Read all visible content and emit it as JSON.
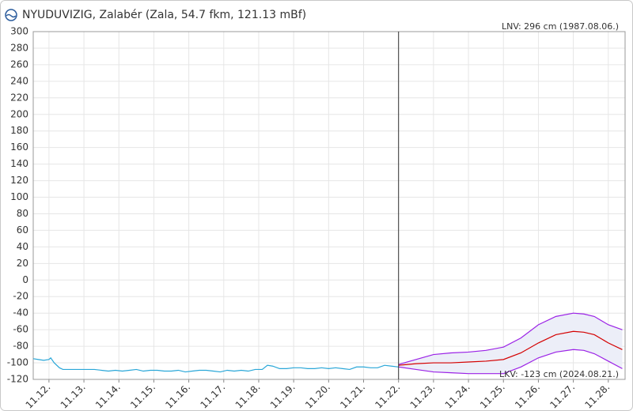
{
  "chart_data": {
    "type": "line",
    "title": "NYUDUVIZIG, Zalabér (Zala, 54.7 fkm, 121.13 mBf)",
    "annotations": [
      "LNV: 296 cm (1987.08.06.)",
      "LKV: -123 cm (2024.08.21.)"
    ],
    "xlim": [
      11.55,
      28.48
    ],
    "xticks": [
      {
        "value": 12,
        "label": "11.12."
      },
      {
        "value": 13,
        "label": "11.13."
      },
      {
        "value": 14,
        "label": "11.14."
      },
      {
        "value": 15,
        "label": "11.15."
      },
      {
        "value": 16,
        "label": "11.16."
      },
      {
        "value": 17,
        "label": "11.17."
      },
      {
        "value": 18,
        "label": "11.18."
      },
      {
        "value": 19,
        "label": "11.19."
      },
      {
        "value": 20,
        "label": "11.20."
      },
      {
        "value": 21,
        "label": "11.21."
      },
      {
        "value": 22,
        "label": "11.22."
      },
      {
        "value": 23,
        "label": "11.23."
      },
      {
        "value": 24,
        "label": "11.24."
      },
      {
        "value": 25,
        "label": "11.25."
      },
      {
        "value": 26,
        "label": "11.26."
      },
      {
        "value": 27,
        "label": "11.27."
      },
      {
        "value": 28,
        "label": "11.28."
      }
    ],
    "ylim": [
      -120,
      300
    ],
    "yticks": [
      -120,
      -100,
      -80,
      -60,
      -40,
      -20,
      0,
      20,
      40,
      60,
      80,
      100,
      120,
      140,
      160,
      180,
      200,
      220,
      240,
      260,
      280,
      300
    ],
    "grid": true,
    "vline": 22,
    "band_color": "#eceef8",
    "series": [
      {
        "color": "#2aa7d8",
        "x": [
          11.55,
          11.7,
          11.85,
          12.0,
          12.05,
          12.15,
          12.3,
          12.4,
          12.7,
          13.0,
          13.3,
          13.5,
          13.7,
          13.9,
          14.1,
          14.3,
          14.5,
          14.7,
          14.9,
          15.1,
          15.3,
          15.5,
          15.7,
          15.9,
          16.1,
          16.3,
          16.5,
          16.7,
          16.9,
          17.1,
          17.3,
          17.5,
          17.7,
          17.9,
          18.1,
          18.25,
          18.4,
          18.6,
          18.8,
          19.0,
          19.2,
          19.4,
          19.6,
          19.8,
          20.0,
          20.2,
          20.4,
          20.6,
          20.8,
          21.0,
          21.2,
          21.4,
          21.6,
          21.8,
          22.0
        ],
        "values": [
          -95,
          -96,
          -97,
          -96,
          -94,
          -100,
          -106,
          -108,
          -108,
          -108,
          -108,
          -109,
          -110,
          -109,
          -110,
          -109,
          -108,
          -110,
          -109,
          -109,
          -110,
          -110,
          -109,
          -111,
          -110,
          -109,
          -109,
          -110,
          -111,
          -109,
          -110,
          -109,
          -110,
          -108,
          -108,
          -103,
          -104,
          -107,
          -107,
          -106,
          -106,
          -107,
          -107,
          -106,
          -107,
          -106,
          -107,
          -108,
          -105,
          -105,
          -106,
          -106,
          -103,
          -104,
          -105
        ]
      },
      {
        "color": "#d40000",
        "x": [
          22.0,
          22.5,
          23.0,
          23.5,
          24.0,
          24.5,
          25.0,
          25.5,
          26.0,
          26.5,
          27.0,
          27.3,
          27.6,
          28.0,
          28.4
        ],
        "values": [
          -103,
          -101,
          -100,
          -100,
          -99,
          -98,
          -96,
          -88,
          -76,
          -66,
          -62,
          -63,
          -66,
          -76,
          -84
        ]
      },
      {
        "color": "#9b22e6",
        "x": [
          22.0,
          22.5,
          23.0,
          23.5,
          24.0,
          24.5,
          25.0,
          25.5,
          26.0,
          26.5,
          27.0,
          27.3,
          27.6,
          28.0,
          28.4
        ],
        "values": [
          -102,
          -96,
          -90,
          -88,
          -87,
          -85,
          -81,
          -70,
          -54,
          -44,
          -40,
          -41,
          -44,
          -54,
          -60
        ]
      },
      {
        "color": "#9b22e6",
        "x": [
          22.0,
          22.5,
          23.0,
          23.5,
          24.0,
          24.5,
          25.0,
          25.5,
          26.0,
          26.5,
          27.0,
          27.3,
          27.6,
          28.0,
          28.4
        ],
        "values": [
          -105,
          -108,
          -111,
          -112,
          -113,
          -113,
          -113,
          -105,
          -94,
          -87,
          -84,
          -85,
          -89,
          -98,
          -107
        ]
      }
    ]
  }
}
